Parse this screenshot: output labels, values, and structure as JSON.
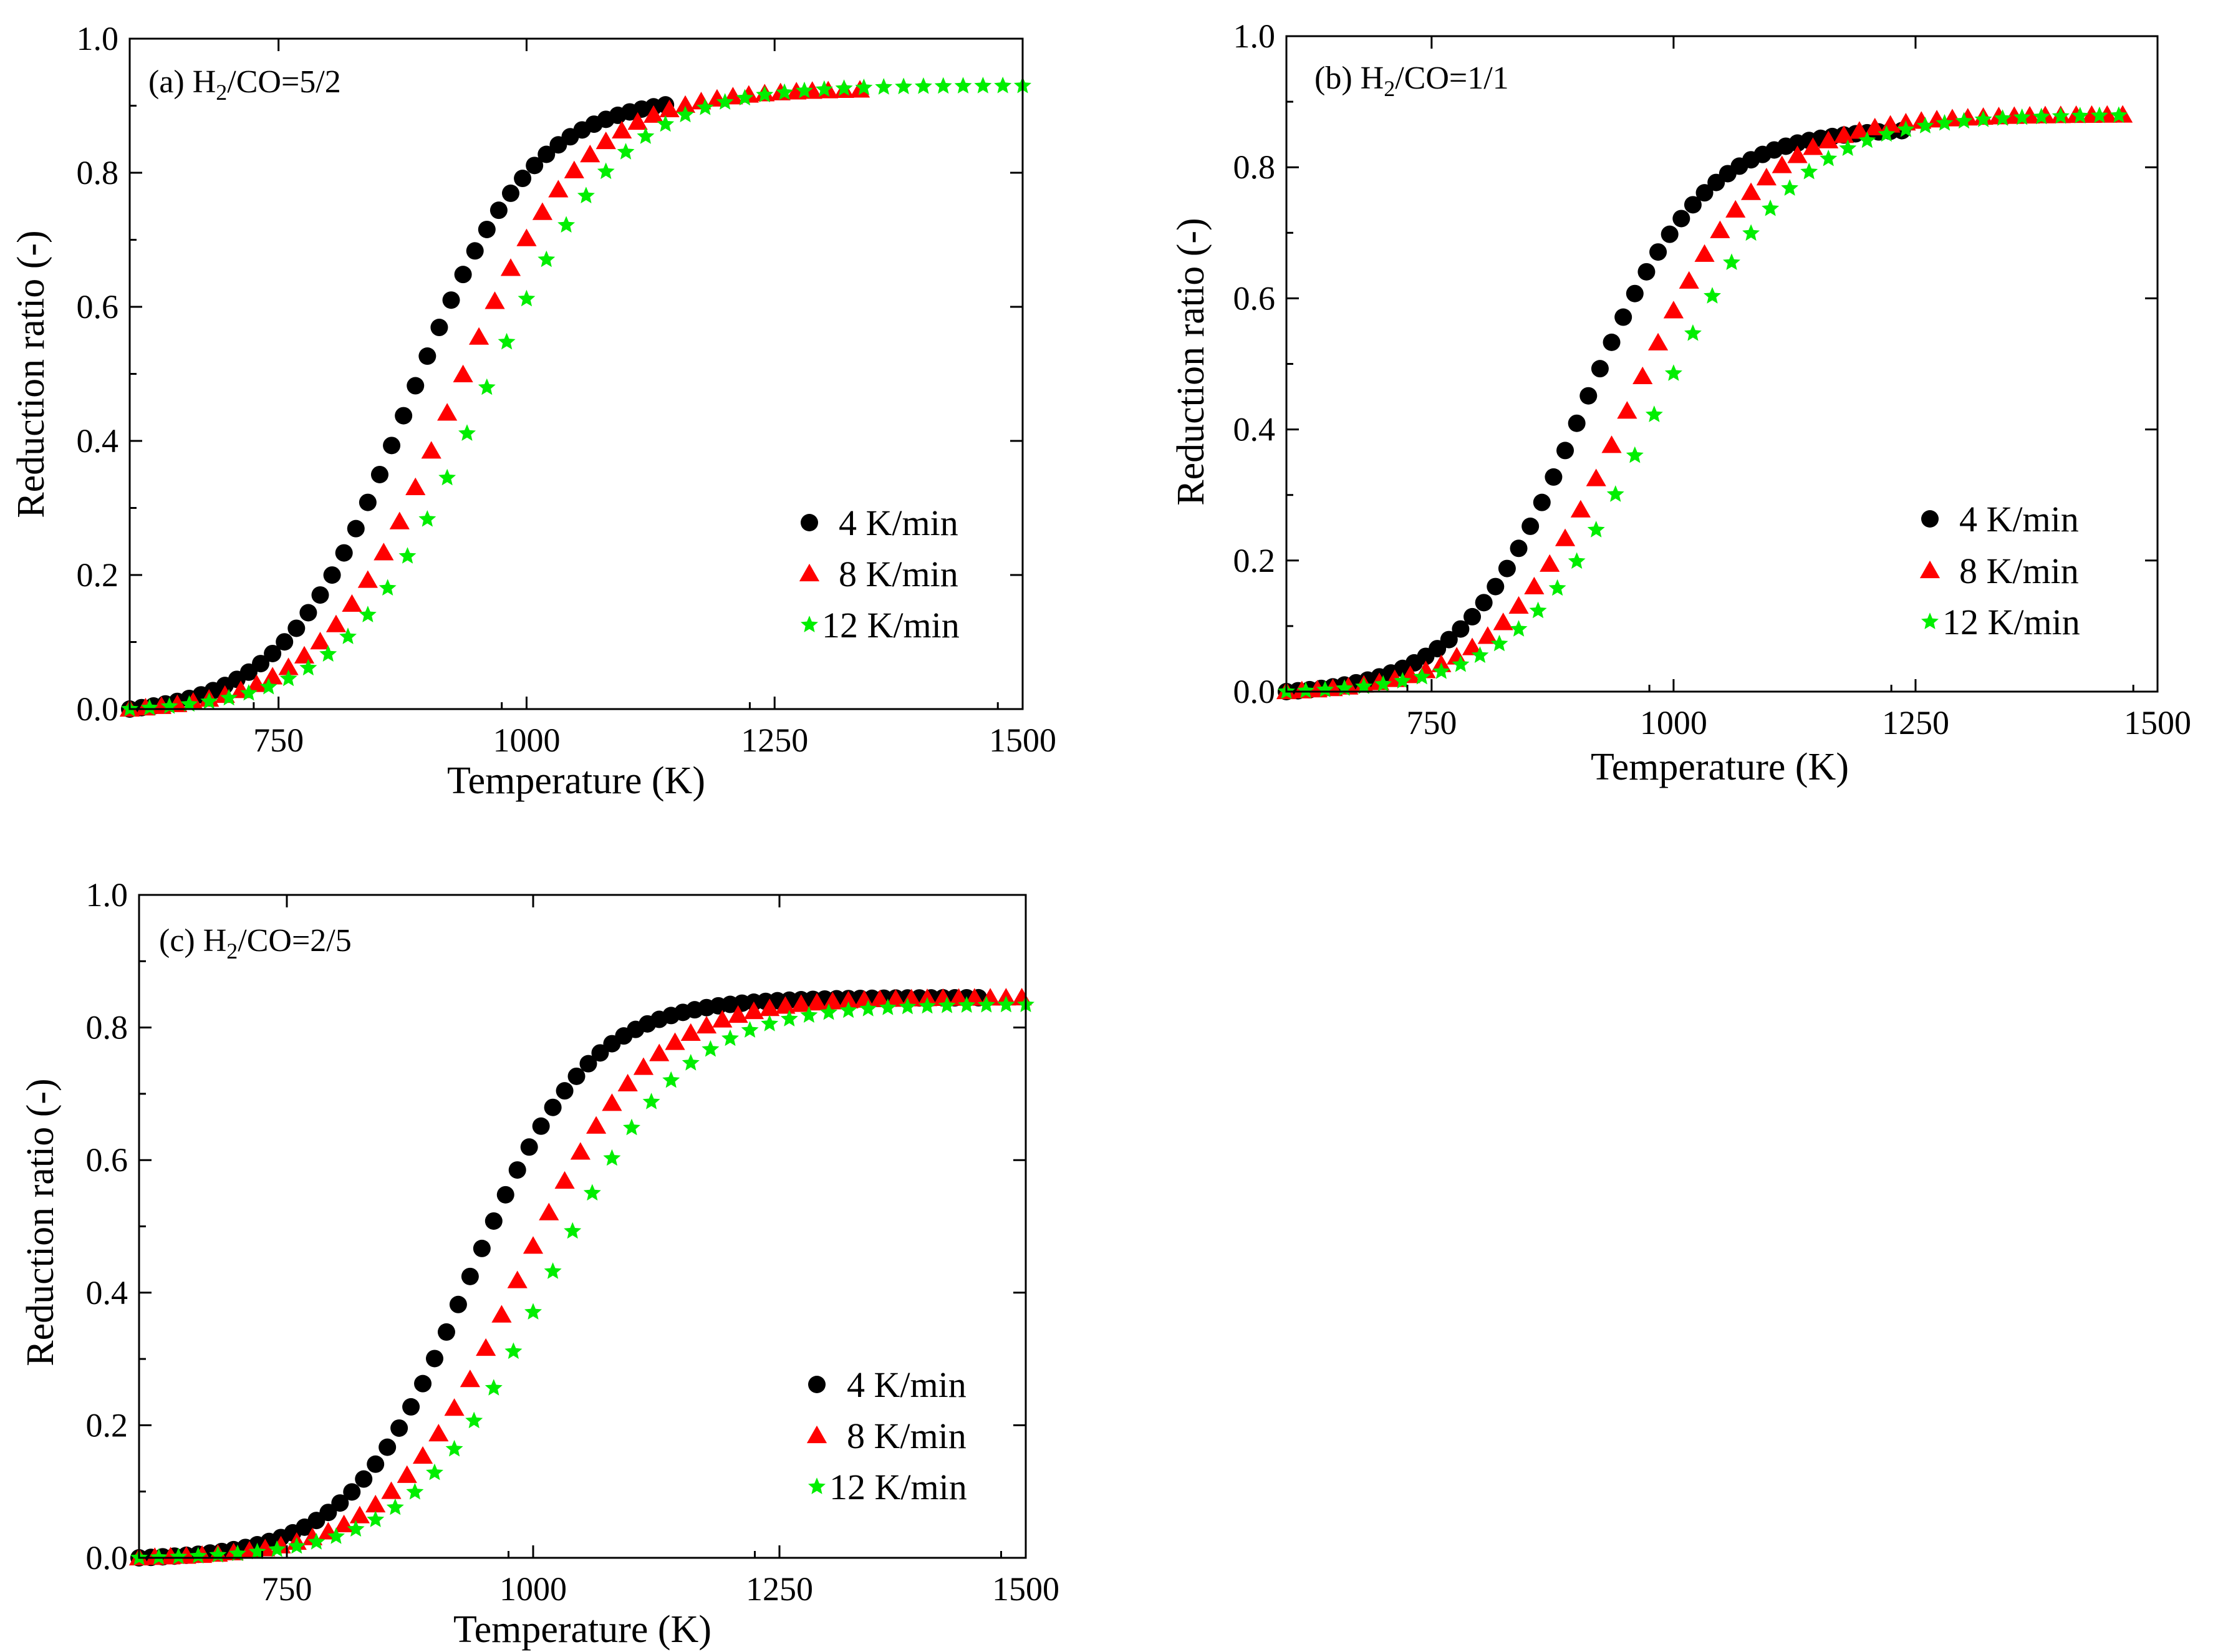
{
  "chart_data": [
    {
      "type": "scatter",
      "panel_label": "(a) H",
      "panel_sub": "2",
      "panel_rest": "/CO=5/2",
      "xlabel": "Temperature (K)",
      "ylabel": "Reduction ratio (-)",
      "xlim": [
        600,
        1500
      ],
      "ylim": [
        0,
        1.0
      ],
      "xticks": [
        750,
        1000,
        1250,
        1500
      ],
      "xtick_labels": [
        "750",
        "1000",
        "1250",
        "1500"
      ],
      "yticks": [
        0,
        0.2,
        0.4,
        0.6,
        0.8,
        1.0
      ],
      "ytick_labels": [
        "0.0",
        "0.2",
        "0.4",
        "0.6",
        "0.8",
        "1.0"
      ],
      "legend_position": "lower-right",
      "series": [
        {
          "name": "4 K/min",
          "marker": "circle",
          "color": "#000000",
          "sigmoid": {
            "T0": 600,
            "T1": 1140,
            "step": 12,
            "fmax": 0.915,
            "k": 62,
            "Tm": 880
          }
        },
        {
          "name": "8 K/min",
          "marker": "triangle",
          "color": "#ff0000",
          "sigmoid": {
            "T0": 600,
            "T1": 1340,
            "step": 16,
            "fmax": 0.925,
            "k": 65,
            "Tm": 925
          }
        },
        {
          "name": "12 K/min",
          "marker": "star",
          "color": "#00ee00",
          "sigmoid": {
            "T0": 600,
            "T1": 1500,
            "step": 20,
            "fmax": 0.93,
            "k": 68,
            "Tm": 955
          }
        }
      ]
    },
    {
      "type": "scatter",
      "panel_label": "(b) H",
      "panel_sub": "2",
      "panel_rest": "/CO=1/1",
      "xlabel": "Temperature (K)",
      "ylabel": "Reduction ratio (-)",
      "xlim": [
        600,
        1500
      ],
      "ylim": [
        0,
        1.0
      ],
      "xticks": [
        750,
        1000,
        1250,
        1500
      ],
      "xtick_labels": [
        "750",
        "1000",
        "1250",
        "1500"
      ],
      "yticks": [
        0,
        0.2,
        0.4,
        0.6,
        0.8,
        1.0
      ],
      "ytick_labels": [
        "0.0",
        "0.2",
        "0.4",
        "0.6",
        "0.8",
        "1.0"
      ],
      "legend_position": "lower-right",
      "series": [
        {
          "name": "4 K/min",
          "marker": "circle",
          "color": "#000000",
          "sigmoid": {
            "T0": 600,
            "T1": 1240,
            "step": 12,
            "fmax": 0.86,
            "k": 62,
            "Tm": 905
          }
        },
        {
          "name": "8 K/min",
          "marker": "triangle",
          "color": "#ff0000",
          "sigmoid": {
            "T0": 600,
            "T1": 1470,
            "step": 16,
            "fmax": 0.88,
            "k": 67,
            "Tm": 955
          }
        },
        {
          "name": "12 K/min",
          "marker": "star",
          "color": "#00ee00",
          "sigmoid": {
            "T0": 600,
            "T1": 1470,
            "step": 20,
            "fmax": 0.88,
            "k": 70,
            "Tm": 985
          }
        }
      ]
    },
    {
      "type": "scatter",
      "panel_label": "(c) H",
      "panel_sub": "2",
      "panel_rest": "/CO=2/5",
      "xlabel": "Temperature (K)",
      "ylabel": "Reduction ratio (-)",
      "xlim": [
        600,
        1500
      ],
      "ylim": [
        0,
        1.0
      ],
      "xticks": [
        750,
        1000,
        1250,
        1500
      ],
      "xtick_labels": [
        "750",
        "1000",
        "1250",
        "1500"
      ],
      "yticks": [
        0,
        0.2,
        0.4,
        0.6,
        0.8,
        1.0
      ],
      "ytick_labels": [
        "0.0",
        "0.2",
        "0.4",
        "0.6",
        "0.8",
        "1.0"
      ],
      "legend_position": "lower-right",
      "series": [
        {
          "name": "4 K/min",
          "marker": "circle",
          "color": "#000000",
          "sigmoid": {
            "T0": 600,
            "T1": 1460,
            "step": 12,
            "fmax": 0.845,
            "k": 60,
            "Tm": 935
          }
        },
        {
          "name": "8 K/min",
          "marker": "triangle",
          "color": "#ff0000",
          "sigmoid": {
            "T0": 600,
            "T1": 1500,
            "step": 16,
            "fmax": 0.845,
            "k": 65,
            "Tm": 985
          }
        },
        {
          "name": "12 K/min",
          "marker": "star",
          "color": "#00ee00",
          "sigmoid": {
            "T0": 600,
            "T1": 1500,
            "step": 20,
            "fmax": 0.835,
            "k": 68,
            "Tm": 1015
          }
        }
      ]
    }
  ]
}
